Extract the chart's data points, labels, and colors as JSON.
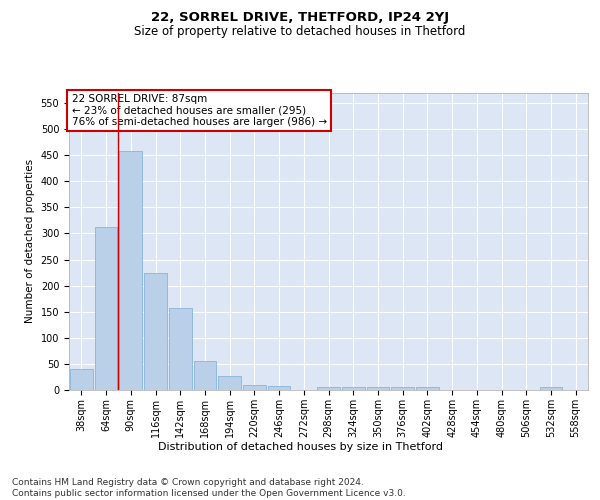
{
  "title1": "22, SORREL DRIVE, THETFORD, IP24 2YJ",
  "title2": "Size of property relative to detached houses in Thetford",
  "xlabel": "Distribution of detached houses by size in Thetford",
  "ylabel": "Number of detached properties",
  "categories": [
    "38sqm",
    "64sqm",
    "90sqm",
    "116sqm",
    "142sqm",
    "168sqm",
    "194sqm",
    "220sqm",
    "246sqm",
    "272sqm",
    "298sqm",
    "324sqm",
    "350sqm",
    "376sqm",
    "402sqm",
    "428sqm",
    "454sqm",
    "480sqm",
    "506sqm",
    "532sqm",
    "558sqm"
  ],
  "values": [
    40,
    313,
    458,
    224,
    158,
    55,
    26,
    10,
    8,
    0,
    5,
    5,
    5,
    5,
    5,
    0,
    0,
    0,
    0,
    5,
    0
  ],
  "bar_color": "#bad0e8",
  "bar_edge_color": "#7aadd4",
  "vline_color": "#cc0000",
  "vline_index": 1.5,
  "annotation_box_text": "22 SORREL DRIVE: 87sqm\n← 23% of detached houses are smaller (295)\n76% of semi-detached houses are larger (986) →",
  "annotation_box_color": "#cc0000",
  "ylim": [
    0,
    570
  ],
  "yticks": [
    0,
    50,
    100,
    150,
    200,
    250,
    300,
    350,
    400,
    450,
    500,
    550
  ],
  "plot_bg_color": "#dce6f5",
  "footnote": "Contains HM Land Registry data © Crown copyright and database right 2024.\nContains public sector information licensed under the Open Government Licence v3.0.",
  "title1_fontsize": 9.5,
  "title2_fontsize": 8.5,
  "xlabel_fontsize": 8,
  "ylabel_fontsize": 7.5,
  "tick_fontsize": 7,
  "annot_fontsize": 7.5,
  "footnote_fontsize": 6.5
}
